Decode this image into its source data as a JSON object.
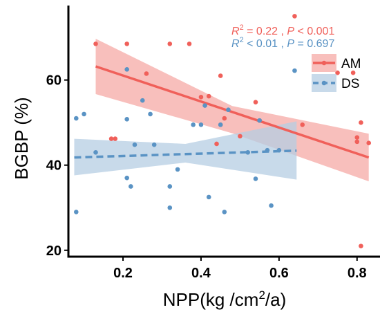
{
  "chart_data": {
    "type": "scatter",
    "xlabel": "NPP(kg /cm²/a)",
    "ylabel": "BGBP (%)",
    "xlim": [
      0.06,
      0.85
    ],
    "ylim": [
      18.5,
      77.5
    ],
    "xticks": [
      0.2,
      0.4,
      0.6,
      0.8
    ],
    "yticks": [
      20,
      40,
      60
    ],
    "xtick_labels": [
      "0.2",
      "0.4",
      "0.6",
      "0.8"
    ],
    "ytick_labels": [
      "20",
      "40",
      "60"
    ],
    "grid": false,
    "legend_position": "top-right",
    "series": [
      {
        "name": "AM",
        "color": "#f0605a",
        "band_color": "#f5a9a5",
        "fit": {
          "x": [
            0.13,
            0.83
          ],
          "y": [
            63.2,
            41.8
          ],
          "linestyle": "solid"
        },
        "band": {
          "x": [
            0.13,
            0.48,
            0.83
          ],
          "upper": [
            69.7,
            53.9,
            47.4
          ],
          "lower": [
            56.7,
            47.5,
            36.2
          ]
        },
        "stats": {
          "r2_text": " = 0.22 , ",
          "p_text": " < 0.001"
        },
        "points": [
          {
            "x": 0.13,
            "y": 68.5
          },
          {
            "x": 0.21,
            "y": 68.5
          },
          {
            "x": 0.26,
            "y": 61.5
          },
          {
            "x": 0.32,
            "y": 68.5
          },
          {
            "x": 0.37,
            "y": 68.5
          },
          {
            "x": 0.17,
            "y": 46.2
          },
          {
            "x": 0.18,
            "y": 46.2
          },
          {
            "x": 0.42,
            "y": 56.2
          },
          {
            "x": 0.4,
            "y": 56.0
          },
          {
            "x": 0.45,
            "y": 61.0
          },
          {
            "x": 0.45,
            "y": 49.5
          },
          {
            "x": 0.46,
            "y": 51.0
          },
          {
            "x": 0.44,
            "y": 45.0
          },
          {
            "x": 0.5,
            "y": 46.8
          },
          {
            "x": 0.54,
            "y": 54.8
          },
          {
            "x": 0.55,
            "y": 50.5
          },
          {
            "x": 0.64,
            "y": 75.0
          },
          {
            "x": 0.66,
            "y": 49.5
          },
          {
            "x": 0.75,
            "y": 61.7
          },
          {
            "x": 0.79,
            "y": 61.7
          },
          {
            "x": 0.8,
            "y": 46.5
          },
          {
            "x": 0.8,
            "y": 45.5
          },
          {
            "x": 0.81,
            "y": 50.0
          },
          {
            "x": 0.83,
            "y": 45.2
          },
          {
            "x": 0.81,
            "y": 21.0
          }
        ]
      },
      {
        "name": "DS",
        "color": "#5a93c4",
        "band_color": "#b6cde3",
        "fit": {
          "x": [
            0.075,
            0.645
          ],
          "y": [
            41.8,
            43.4
          ],
          "linestyle": "dashed"
        },
        "band": {
          "x": [
            0.075,
            0.36,
            0.645
          ],
          "upper": [
            46.2,
            45.0,
            50.3
          ],
          "lower": [
            37.6,
            40.6,
            36.6
          ]
        },
        "stats": {
          "r2_text": " < 0.01 , ",
          "p_text": " = 0.697"
        },
        "points": [
          {
            "x": 0.08,
            "y": 51.0
          },
          {
            "x": 0.1,
            "y": 52.0
          },
          {
            "x": 0.08,
            "y": 29.0
          },
          {
            "x": 0.13,
            "y": 43.0
          },
          {
            "x": 0.21,
            "y": 62.5
          },
          {
            "x": 0.21,
            "y": 50.8
          },
          {
            "x": 0.21,
            "y": 37.0
          },
          {
            "x": 0.22,
            "y": 35.0
          },
          {
            "x": 0.23,
            "y": 44.8
          },
          {
            "x": 0.25,
            "y": 55.2
          },
          {
            "x": 0.27,
            "y": 52.0
          },
          {
            "x": 0.28,
            "y": 44.8
          },
          {
            "x": 0.32,
            "y": 35.0
          },
          {
            "x": 0.32,
            "y": 30.0
          },
          {
            "x": 0.34,
            "y": 39.0
          },
          {
            "x": 0.38,
            "y": 49.5
          },
          {
            "x": 0.4,
            "y": 49.5
          },
          {
            "x": 0.41,
            "y": 54.0
          },
          {
            "x": 0.42,
            "y": 32.5
          },
          {
            "x": 0.45,
            "y": 49.5
          },
          {
            "x": 0.46,
            "y": 29.0
          },
          {
            "x": 0.47,
            "y": 53.0
          },
          {
            "x": 0.52,
            "y": 43.0
          },
          {
            "x": 0.54,
            "y": 36.8
          },
          {
            "x": 0.55,
            "y": 50.5
          },
          {
            "x": 0.57,
            "y": 43.5
          },
          {
            "x": 0.58,
            "y": 30.5
          },
          {
            "x": 0.6,
            "y": 43.5
          },
          {
            "x": 0.64,
            "y": 62.2
          }
        ]
      }
    ],
    "legend": [
      "AM",
      "DS"
    ]
  }
}
